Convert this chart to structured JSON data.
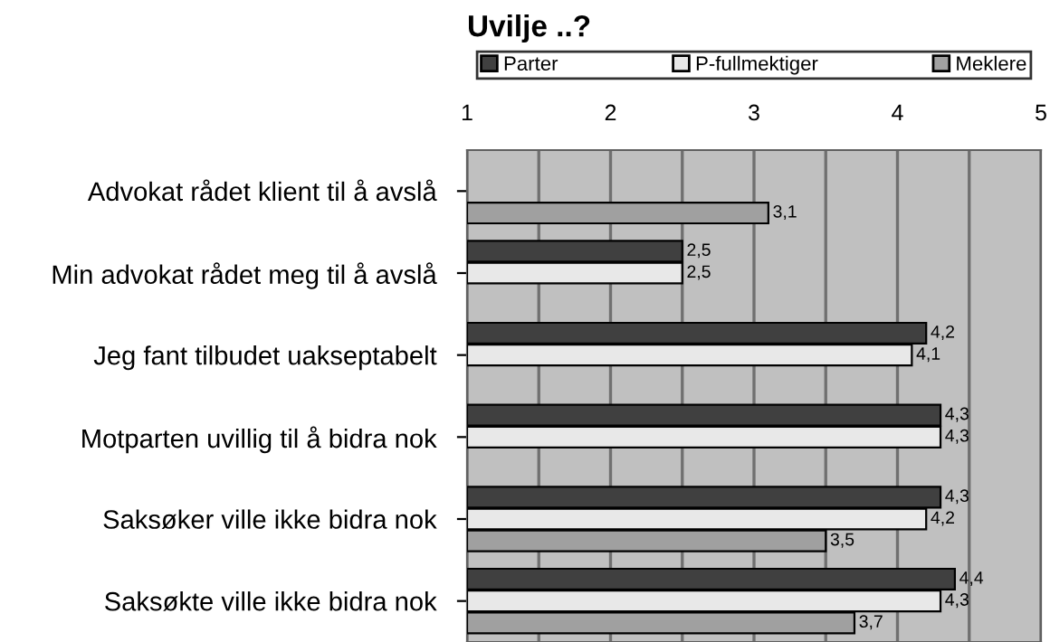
{
  "chart_data": {
    "type": "bar",
    "orientation": "horizontal",
    "title": "Uvilje ..?",
    "categories": [
      "Advokat rådet klient til å avslå",
      "Min advokat rådet meg til å avslå",
      "Jeg fant tilbudet uakseptabelt",
      "Motparten uvillig til å bidra nok",
      "Saksøker ville ikke bidra nok",
      "Saksøkte ville ikke bidra nok"
    ],
    "series": [
      {
        "name": "Parter",
        "color": "#404040",
        "values": [
          null,
          2.5,
          4.2,
          4.3,
          4.3,
          4.4
        ],
        "value_labels": [
          null,
          "2,5",
          "4,2",
          "4,3",
          "4,3",
          "4,4"
        ]
      },
      {
        "name": "P-fullmektiger",
        "color": "#e8e8e8",
        "values": [
          null,
          2.5,
          4.1,
          4.3,
          4.2,
          4.3
        ],
        "value_labels": [
          null,
          "2,5",
          "4,1",
          "4,3",
          "4,2",
          "4,3"
        ]
      },
      {
        "name": "Meklere",
        "color": "#a0a0a0",
        "values": [
          3.1,
          null,
          null,
          null,
          3.5,
          3.7
        ],
        "value_labels": [
          "3,1",
          null,
          null,
          null,
          "3,5",
          "3,7"
        ]
      }
    ],
    "xlim": [
      1,
      5
    ],
    "xticks": [
      1,
      {
        "value": 1.5,
        "label": null
      },
      2,
      {
        "value": 2.5,
        "label": null
      },
      3,
      {
        "value": 3.5,
        "label": null
      },
      4,
      {
        "value": 4.5,
        "label": null
      },
      5
    ],
    "grid": "x",
    "legend": "top"
  }
}
